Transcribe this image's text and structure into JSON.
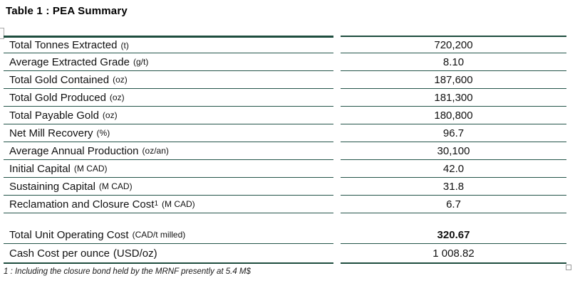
{
  "title": "Table 1 : PEA Summary",
  "colors": {
    "table_border_green": "#1E4D3E"
  },
  "table": {
    "rows": [
      {
        "label": "Total Tonnes Extracted",
        "unit": "(t)",
        "unit_small": true,
        "value": "720,200"
      },
      {
        "label": "Average Extracted Grade",
        "unit": "(g/t)",
        "unit_small": true,
        "value": "8.10"
      },
      {
        "label": "Total Gold Contained",
        "unit": "(oz)",
        "unit_small": true,
        "value": "187,600"
      },
      {
        "label": "Total Gold Produced",
        "unit": "(oz)",
        "unit_small": true,
        "value": "181,300"
      },
      {
        "label": "Total Payable Gold",
        "unit": "(oz)",
        "unit_small": true,
        "value": "180,800"
      },
      {
        "label": "Net Mill Recovery",
        "unit": "(%)",
        "unit_small": true,
        "value": "96.7"
      },
      {
        "label": "Average Annual Production",
        "unit": "(oz/an)",
        "unit_small": true,
        "value": "30,100"
      },
      {
        "label": "Initial Capital",
        "unit": "(M CAD)",
        "unit_small": true,
        "value": "42.0"
      },
      {
        "label": "Sustaining Capital",
        "unit": "(M CAD)",
        "unit_small": true,
        "value": "31.8"
      },
      {
        "label": "Reclamation and Closure Cost",
        "sup": "1",
        "unit": "(M CAD)",
        "unit_small": true,
        "value": "6.7"
      },
      {
        "spacer": true
      },
      {
        "label": "Total Unit Operating Cost",
        "unit": "(CAD/t milled)",
        "unit_small": true,
        "value": "320.67",
        "value_bold": true
      },
      {
        "label": "Cash Cost per ounce",
        "unit": "(USD/oz)",
        "unit_small": false,
        "value": "1 008.82"
      }
    ],
    "footnote": "1 : Including the closure bond held by the MRNF presently at 5.4 M$"
  }
}
